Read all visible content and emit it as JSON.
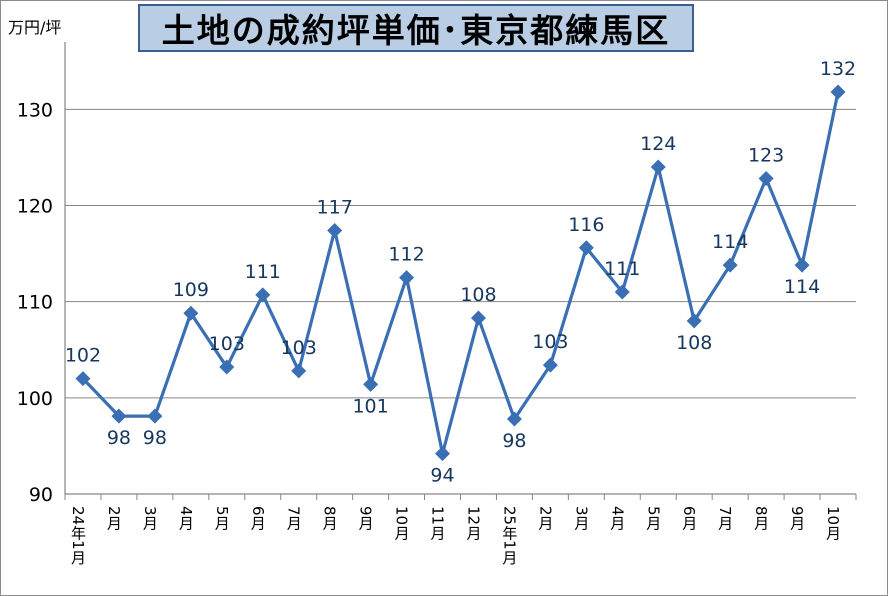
{
  "chart_data": {
    "type": "line",
    "title": "土地の成約坪単価･東京都練馬区",
    "ylabel": "万円/坪",
    "xlabel": "",
    "ylim": [
      90,
      137
    ],
    "yticks": [
      90,
      100,
      110,
      120,
      130
    ],
    "grid": true,
    "legend": "none",
    "categories": [
      "24年1月",
      "2月",
      "3月",
      "4月",
      "5月",
      "6月",
      "7月",
      "8月",
      "9月",
      "10月",
      "11月",
      "12月",
      "25年1月",
      "2月",
      "3月",
      "4月",
      "5月",
      "6月",
      "7月",
      "8月",
      "9月",
      "10月"
    ],
    "series": [
      {
        "values": [
          102,
          98,
          98,
          109,
          103,
          111,
          103,
          117,
          101,
          112,
          94,
          108,
          98,
          103,
          116,
          111,
          124,
          108,
          114,
          123,
          114,
          132
        ],
        "plot_values": [
          102.0,
          98.1,
          98.1,
          108.8,
          103.2,
          110.7,
          102.8,
          117.4,
          101.4,
          112.5,
          94.2,
          108.3,
          97.8,
          103.4,
          115.6,
          111.0,
          124.0,
          108.0,
          113.8,
          122.8,
          113.8,
          131.8
        ],
        "label_side": [
          "above",
          "below",
          "below",
          "above",
          "above",
          "above",
          "above",
          "above",
          "below",
          "above",
          "below",
          "above",
          "below",
          "above",
          "above",
          "above",
          "above",
          "below",
          "above",
          "above",
          "below",
          "above"
        ]
      }
    ],
    "colors": {
      "line": "#3a6fb4",
      "marker": "#3a6fb4",
      "label": "#17375e",
      "grid": "#868686",
      "axis": "#868686"
    }
  }
}
